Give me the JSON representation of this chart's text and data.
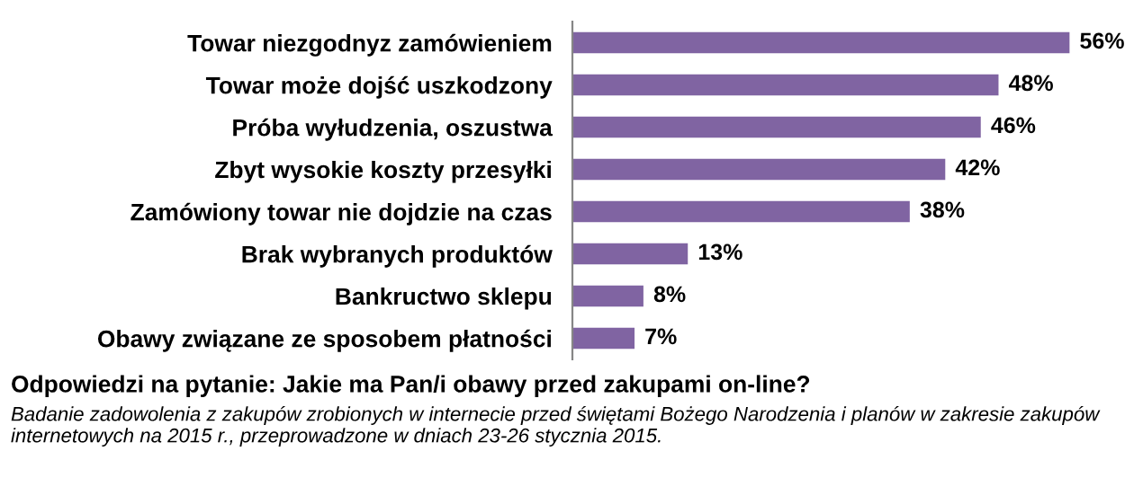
{
  "chart_data": {
    "type": "bar",
    "orientation": "horizontal",
    "title": "Odpowiedzi na pytanie: Jakie ma Pan/i obawy przed zakupami on-line?",
    "categories": [
      "Towar niezgodnyz zamówieniem",
      "Towar może dojść uszkodzony",
      "Próba wyłudzenia, oszustwa",
      "Zbyt wysokie koszty przesyłki",
      "Zamówiony towar nie dojdzie na czas",
      "Brak wybranych produktów",
      "Bankructwo sklepu",
      "Obawy związane ze sposobem płatności"
    ],
    "values": [
      56,
      48,
      46,
      42,
      38,
      13,
      8,
      7
    ],
    "value_labels": [
      "56%",
      "48%",
      "46%",
      "42%",
      "38%",
      "13%",
      "8%",
      "7%"
    ],
    "color": "#8064a2",
    "annotations": [
      "Badanie zadowolenia z zakupów zrobionych w internecie przed świętami Bożego Narodzenia i planów w zakresie zakupów internetowych na 2015 r., przeprowadzone w dniach 23-26 stycznia 2015."
    ],
    "grid": false,
    "legend": false
  }
}
